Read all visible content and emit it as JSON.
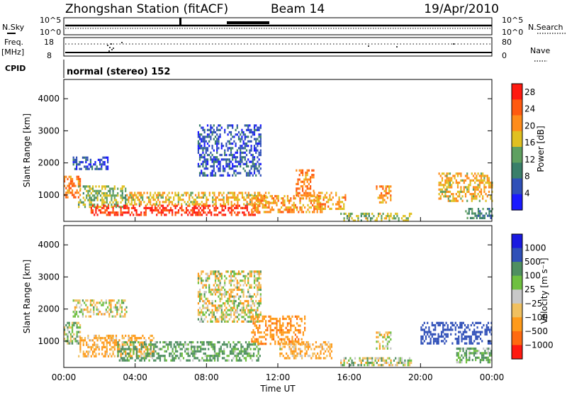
{
  "header": {
    "station": "Zhongshan Station (fitACF)",
    "beam": "Beam 14",
    "date": "19/Apr/2010"
  },
  "strips": {
    "nsky_label": "N.Sky",
    "nsky_ticks": [
      "10^5",
      "10^0"
    ],
    "nsearch_label": "N.Search",
    "nsearch_ticks": [
      "10^5",
      "10^0"
    ],
    "freq_label": "Freq.",
    "freq_unit": "[MHz]",
    "freq_ticks": [
      "18",
      "8"
    ],
    "nave_label": "Nave",
    "nave_ticks": [
      "80",
      "0"
    ],
    "cpid_label": "CPID",
    "cpid_text": "normal (stereo) 152"
  },
  "colors": {
    "power_scale": [
      "#1a1aff",
      "#3050b8",
      "#3a7f6a",
      "#5fa060",
      "#e0c020",
      "#ff8c1a",
      "#ff5a10",
      "#ff1a10"
    ],
    "velocity_scale": [
      "#1a1ae0",
      "#3050b8",
      "#4f8f60",
      "#6fc040",
      "#c8c8c8",
      "#f0c060",
      "#ff9a1a",
      "#ff6a10",
      "#ff1a10"
    ]
  },
  "chart_data": [
    {
      "type": "heatmap",
      "title": "",
      "xlabel": "Time UT",
      "ylabel": "Slant Range [km]",
      "x_ticks": [
        "00:00",
        "04:00",
        "08:00",
        "12:00",
        "16:00",
        "20:00",
        "00:00"
      ],
      "y_ticks": [
        "1000",
        "2000",
        "3000",
        "4000"
      ],
      "xlim_hours": [
        0,
        24
      ],
      "ylim_km": [
        180,
        4600
      ],
      "colorbar": {
        "label": "Power [dB]",
        "ticks": [
          "4",
          "8",
          "12",
          "16",
          "20",
          "24",
          "28"
        ],
        "range": [
          0,
          30
        ]
      },
      "echo_regions": [
        {
          "t0": 0.0,
          "t1": 0.9,
          "r0": 900,
          "r1": 1600,
          "value": 22
        },
        {
          "t0": 0.5,
          "t1": 2.5,
          "r0": 1800,
          "r1": 2200,
          "value": 6
        },
        {
          "t0": 0.8,
          "t1": 3.5,
          "r0": 600,
          "r1": 1300,
          "value": 14
        },
        {
          "t0": 1.5,
          "t1": 11.0,
          "r0": 380,
          "r1": 700,
          "value": 27
        },
        {
          "t0": 3.5,
          "t1": 11.5,
          "r0": 700,
          "r1": 1100,
          "value": 18
        },
        {
          "t0": 7.5,
          "t1": 11.0,
          "r0": 1600,
          "r1": 3200,
          "value": 6
        },
        {
          "t0": 10.5,
          "t1": 14.5,
          "r0": 450,
          "r1": 1000,
          "value": 20
        },
        {
          "t0": 13.0,
          "t1": 14.0,
          "r0": 1000,
          "r1": 1800,
          "value": 22
        },
        {
          "t0": 14.0,
          "t1": 15.8,
          "r0": 600,
          "r1": 1100,
          "value": 19
        },
        {
          "t0": 15.5,
          "t1": 19.5,
          "r0": 230,
          "r1": 450,
          "value": 15
        },
        {
          "t0": 17.5,
          "t1": 18.3,
          "r0": 800,
          "r1": 1300,
          "value": 21
        },
        {
          "t0": 21.0,
          "t1": 24.0,
          "r0": 800,
          "r1": 1700,
          "value": 18
        },
        {
          "t0": 22.5,
          "t1": 24.0,
          "r0": 300,
          "r1": 600,
          "value": 10
        }
      ]
    },
    {
      "type": "heatmap",
      "title": "",
      "xlabel": "Time UT",
      "ylabel": "Slant Range [km]",
      "x_ticks": [
        "00:00",
        "04:00",
        "08:00",
        "12:00",
        "16:00",
        "20:00",
        "00:00"
      ],
      "y_ticks": [
        "1000",
        "2000",
        "3000",
        "4000"
      ],
      "xlim_hours": [
        0,
        24
      ],
      "ylim_km": [
        180,
        4600
      ],
      "colorbar": {
        "label": "Velocity [m s⁻¹]",
        "ticks": [
          "1000",
          "500",
          "100",
          "25",
          "−25",
          "−100",
          "−500",
          "−1000"
        ]
      },
      "echo_regions": [
        {
          "t0": 0.0,
          "t1": 0.9,
          "r0": 900,
          "r1": 1600,
          "value": 60
        },
        {
          "t0": 0.5,
          "t1": 3.5,
          "r0": 1800,
          "r1": 2300,
          "value": 0
        },
        {
          "t0": 0.8,
          "t1": 5.0,
          "r0": 500,
          "r1": 1200,
          "value": -150
        },
        {
          "t0": 3.0,
          "t1": 11.0,
          "r0": 380,
          "r1": 1000,
          "value": 150
        },
        {
          "t0": 7.5,
          "t1": 11.0,
          "r0": 1600,
          "r1": 3200,
          "value": -20
        },
        {
          "t0": 10.5,
          "t1": 13.5,
          "r0": 900,
          "r1": 1800,
          "value": -400
        },
        {
          "t0": 12.0,
          "t1": 15.0,
          "r0": 450,
          "r1": 1000,
          "value": -120
        },
        {
          "t0": 15.5,
          "t1": 19.5,
          "r0": 230,
          "r1": 500,
          "value": 30
        },
        {
          "t0": 17.5,
          "t1": 18.3,
          "r0": 800,
          "r1": 1300,
          "value": -30
        },
        {
          "t0": 20.0,
          "t1": 24.0,
          "r0": 900,
          "r1": 1600,
          "value": 700
        },
        {
          "t0": 22.0,
          "t1": 24.0,
          "r0": 350,
          "r1": 800,
          "value": 150
        }
      ]
    }
  ]
}
